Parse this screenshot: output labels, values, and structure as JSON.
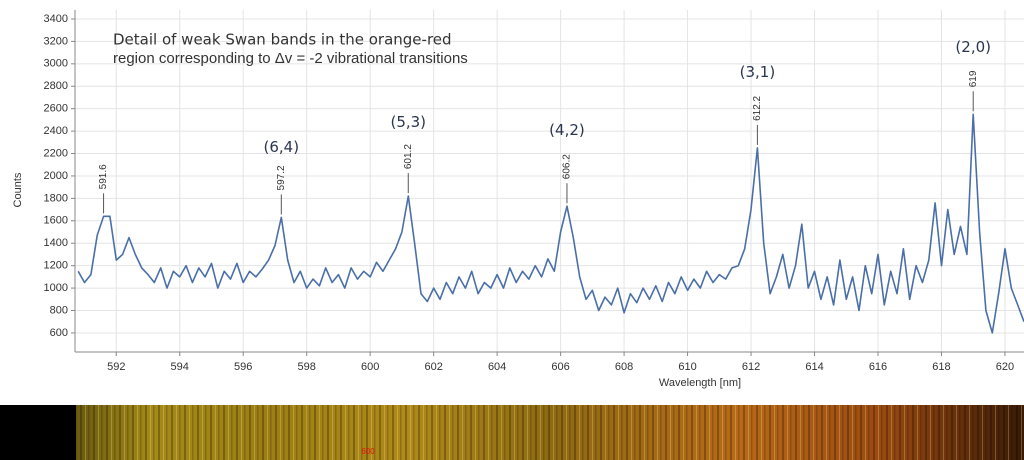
{
  "chart_data": {
    "type": "line",
    "title_lines": [
      "Detail of weak Swan bands in the orange-red",
      "region corresponding to Δv = -2 vibrational transitions"
    ],
    "xlabel": "Wavelength [nm]",
    "ylabel": "Counts",
    "xlim": [
      590.7,
      620.6
    ],
    "ylim": [
      430,
      3480
    ],
    "xticks": [
      592,
      594,
      596,
      598,
      600,
      602,
      604,
      606,
      608,
      610,
      612,
      614,
      616,
      618,
      620
    ],
    "yticks": [
      600,
      800,
      1000,
      1200,
      1400,
      1600,
      1800,
      2000,
      2200,
      2400,
      2600,
      2800,
      3000,
      3200,
      3400
    ],
    "grid": true,
    "x": [
      590.8,
      591.0,
      591.2,
      591.4,
      591.6,
      591.8,
      592.0,
      592.2,
      592.4,
      592.6,
      592.8,
      593.0,
      593.2,
      593.4,
      593.6,
      593.8,
      594.0,
      594.2,
      594.4,
      594.6,
      594.8,
      595.0,
      595.2,
      595.4,
      595.6,
      595.8,
      596.0,
      596.2,
      596.4,
      596.6,
      596.8,
      597.0,
      597.2,
      597.4,
      597.6,
      597.8,
      598.0,
      598.2,
      598.4,
      598.6,
      598.8,
      599.0,
      599.2,
      599.4,
      599.6,
      599.8,
      600.0,
      600.2,
      600.4,
      600.6,
      600.8,
      601.0,
      601.2,
      601.4,
      601.6,
      601.8,
      602.0,
      602.2,
      602.4,
      602.6,
      602.8,
      603.0,
      603.2,
      603.4,
      603.6,
      603.8,
      604.0,
      604.2,
      604.4,
      604.6,
      604.8,
      605.0,
      605.2,
      605.4,
      605.6,
      605.8,
      606.0,
      606.2,
      606.4,
      606.6,
      606.8,
      607.0,
      607.2,
      607.4,
      607.6,
      607.8,
      608.0,
      608.2,
      608.4,
      608.6,
      608.8,
      609.0,
      609.2,
      609.4,
      609.6,
      609.8,
      610.0,
      610.2,
      610.4,
      610.6,
      610.8,
      611.0,
      611.2,
      611.4,
      611.6,
      611.8,
      612.0,
      612.2,
      612.4,
      612.6,
      612.8,
      613.0,
      613.2,
      613.4,
      613.6,
      613.8,
      614.0,
      614.2,
      614.4,
      614.6,
      614.8,
      615.0,
      615.2,
      615.4,
      615.6,
      615.8,
      616.0,
      616.2,
      616.4,
      616.6,
      616.8,
      617.0,
      617.2,
      617.4,
      617.6,
      617.8,
      618.0,
      618.2,
      618.4,
      618.6,
      618.8,
      619.0,
      619.2,
      619.4,
      619.6,
      619.8,
      620.0,
      620.2,
      620.4,
      620.6
    ],
    "series": [
      {
        "name": "Counts",
        "color": "#4a6fa8",
        "values": [
          1150,
          1050,
          1120,
          1470,
          1640,
          1640,
          1250,
          1300,
          1450,
          1300,
          1180,
          1120,
          1050,
          1180,
          1000,
          1150,
          1100,
          1200,
          1050,
          1180,
          1100,
          1220,
          1000,
          1150,
          1080,
          1220,
          1050,
          1150,
          1100,
          1170,
          1250,
          1380,
          1630,
          1250,
          1050,
          1150,
          1000,
          1080,
          1020,
          1180,
          1050,
          1120,
          1000,
          1180,
          1080,
          1150,
          1100,
          1230,
          1150,
          1250,
          1350,
          1500,
          1820,
          1400,
          950,
          880,
          1000,
          900,
          1050,
          950,
          1100,
          1000,
          1150,
          950,
          1050,
          1000,
          1120,
          1000,
          1180,
          1050,
          1150,
          1080,
          1200,
          1100,
          1260,
          1150,
          1500,
          1730,
          1450,
          1100,
          900,
          980,
          800,
          920,
          850,
          1000,
          780,
          950,
          870,
          1000,
          900,
          1020,
          880,
          1050,
          950,
          1100,
          980,
          1080,
          1000,
          1150,
          1050,
          1120,
          1080,
          1180,
          1200,
          1350,
          1700,
          2250,
          1400,
          950,
          1100,
          1300,
          1000,
          1200,
          1570,
          1000,
          1150,
          900,
          1100,
          850,
          1250,
          900,
          1100,
          800,
          1200,
          950,
          1300,
          850,
          1150,
          950,
          1350,
          900,
          1200,
          1050,
          1250,
          1760,
          1200,
          1700,
          1300,
          1550,
          1300,
          2550,
          1500,
          800,
          600,
          950,
          1350,
          1000,
          850,
          700
        ]
      }
    ],
    "peaks": [
      {
        "x": 591.6,
        "label": "591.6"
      },
      {
        "x": 597.2,
        "label": "597.2"
      },
      {
        "x": 601.2,
        "label": "601.2"
      },
      {
        "x": 606.2,
        "label": "606.2"
      },
      {
        "x": 612.2,
        "label": "612.2"
      },
      {
        "x": 619.0,
        "label": "619"
      }
    ],
    "bands": [
      {
        "label": "(6,4)",
        "x": 597.2,
        "y": 2252
      },
      {
        "label": "(5,3)",
        "x": 601.2,
        "y": 2475
      },
      {
        "label": "(4,2)",
        "x": 606.2,
        "y": 2404
      },
      {
        "label": "(3,1)",
        "x": 612.2,
        "y": 2921
      },
      {
        "label": "(2,0)",
        "x": 619.0,
        "y": 3145
      }
    ],
    "strip_label": "600"
  }
}
